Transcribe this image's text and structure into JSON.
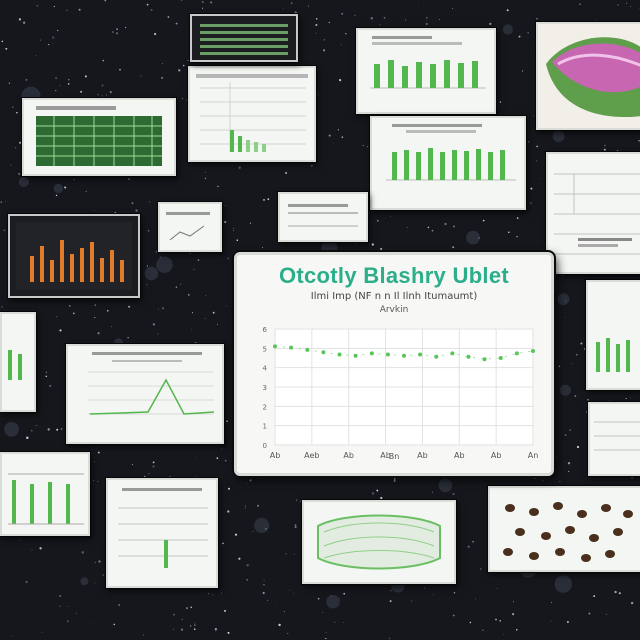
{
  "main_card": {
    "title": "Otcotly Blashry Ublet",
    "subtitle": "Ilmi Imp (NF n n Il Ilnh Itumaumt)",
    "subtitle2": "Arvkin",
    "xlabel": "Bn"
  },
  "chart_data": {
    "type": "line",
    "title": "Otcotly Blashry Ublet",
    "x": [
      1,
      2,
      3,
      4,
      5,
      6,
      7,
      8,
      9,
      10,
      11,
      12,
      13,
      14,
      15,
      16,
      17
    ],
    "series": [
      {
        "values": [
          85,
          84,
          82,
          80,
          78,
          77,
          79,
          78,
          77,
          78,
          76,
          79,
          76,
          74,
          75,
          79,
          81
        ]
      }
    ],
    "xticks": [
      "Ab",
      "Aeb",
      "Ab",
      "Ab",
      "Ab",
      "Ab",
      "Ab",
      "An"
    ],
    "yticks": [
      "6",
      "5",
      "4",
      "3",
      "2",
      "1",
      "0"
    ],
    "ylim": [
      0,
      100
    ],
    "grid": true,
    "legend": false,
    "colors": {
      "line": "#59c659",
      "title": "#2cae8a"
    }
  },
  "thumbnails": {
    "palette": {
      "green": "#52b74d",
      "orange": "#e07c2a",
      "pink": "#c766b1",
      "leaf": "#5f9e4a",
      "brown": "#4a2f1c"
    }
  }
}
